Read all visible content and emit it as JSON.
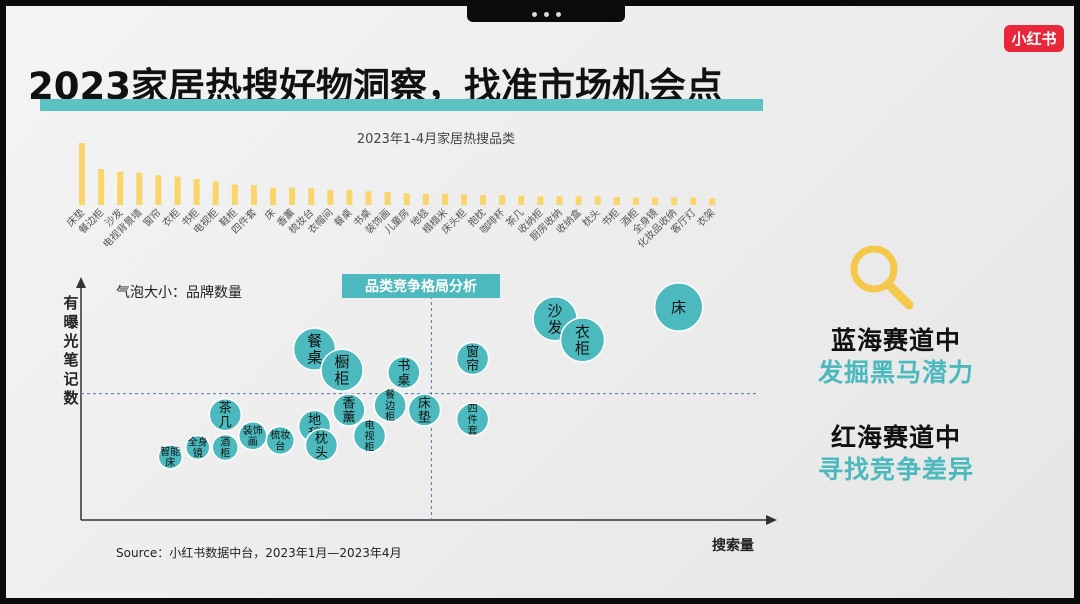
{
  "title": "2023家居热搜好物洞察，找准市场机会点",
  "brand_logo": "小红书",
  "colors": {
    "accent": "#5cc3c3",
    "bar": "#fad56a",
    "bubble": "#4bb9bd",
    "logo": "#e8273a"
  },
  "chart_data": [
    {
      "type": "bar",
      "title": "2023年1-4月家居热搜品类",
      "categories": [
        "床垫",
        "餐边柜",
        "沙发",
        "电视背景墙",
        "窗帘",
        "衣柜",
        "书柜",
        "电视柜",
        "鞋柜",
        "四件套",
        "床",
        "香薰",
        "梳妆台",
        "衣帽间",
        "餐桌",
        "书桌",
        "装饰画",
        "儿童房",
        "地毯",
        "榻榻米",
        "床头柜",
        "抱枕",
        "咖啡杯",
        "茶几",
        "收纳柜",
        "厨房收纳",
        "收纳盒",
        "枕头",
        "书柜",
        "酒柜",
        "全身镜",
        "化妆品收纳",
        "客厅灯",
        "衣架"
      ],
      "values": [
        100,
        58,
        54,
        52,
        48,
        46,
        42,
        38,
        33,
        32,
        28,
        28,
        27,
        24,
        24,
        22,
        21,
        19,
        18,
        18,
        17,
        16,
        16,
        15,
        14,
        14,
        14,
        14,
        13,
        12,
        12,
        12,
        12,
        11
      ],
      "ylim": [
        0,
        100
      ]
    },
    {
      "type": "scatter",
      "title": "品类竞争格局分析",
      "xlabel": "搜索量",
      "ylabel": "有曝光笔记数",
      "size_legend": "气泡大小：品牌数量",
      "xlim": [
        0,
        100
      ],
      "ylim": [
        0,
        100
      ],
      "divider_x": 51,
      "divider_y": 54,
      "points": [
        {
          "label": "床",
          "x": 87,
          "y": 91,
          "size": 24
        },
        {
          "label": "沙发",
          "x": 69,
          "y": 86,
          "size": 22
        },
        {
          "label": "衣柜",
          "x": 73,
          "y": 77,
          "size": 22
        },
        {
          "label": "餐桌",
          "x": 34,
          "y": 73,
          "size": 21
        },
        {
          "label": "橱柜",
          "x": 38,
          "y": 64,
          "size": 21
        },
        {
          "label": "窗帘",
          "x": 57,
          "y": 69,
          "size": 16
        },
        {
          "label": "书桌",
          "x": 47,
          "y": 63,
          "size": 16
        },
        {
          "label": "餐边柜",
          "x": 45,
          "y": 49,
          "size": 16
        },
        {
          "label": "床垫",
          "x": 50,
          "y": 47,
          "size": 16
        },
        {
          "label": "四件套",
          "x": 57,
          "y": 43,
          "size": 16
        },
        {
          "label": "香薰",
          "x": 39,
          "y": 47,
          "size": 16
        },
        {
          "label": "地毯",
          "x": 34,
          "y": 40,
          "size": 16
        },
        {
          "label": "枕头",
          "x": 35,
          "y": 32,
          "size": 16
        },
        {
          "label": "电视柜",
          "x": 42,
          "y": 36,
          "size": 16
        },
        {
          "label": "茶几",
          "x": 21,
          "y": 45,
          "size": 16
        },
        {
          "label": "装饰画",
          "x": 25,
          "y": 36,
          "size": 14
        },
        {
          "label": "梳妆台",
          "x": 29,
          "y": 34,
          "size": 14
        },
        {
          "label": "酒柜",
          "x": 21,
          "y": 31,
          "size": 13
        },
        {
          "label": "全身镜",
          "x": 17,
          "y": 31,
          "size": 12
        },
        {
          "label": "智能床",
          "x": 13,
          "y": 27,
          "size": 12
        }
      ]
    }
  ],
  "source": "Source：小红书数据中台，2023年1月—2023年4月",
  "insights": {
    "blue_line1": "蓝海赛道中",
    "blue_line2": "发掘黑马潜力",
    "red_line1": "红海赛道中",
    "red_line2": "寻找竞争差异"
  }
}
